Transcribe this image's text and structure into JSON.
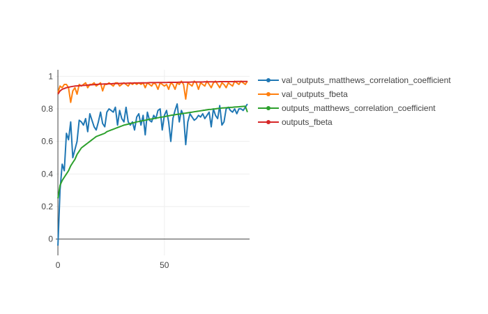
{
  "chart_data": {
    "type": "line",
    "xlim": [
      -1,
      90
    ],
    "ylim": [
      -0.1,
      1.04
    ],
    "grid": true,
    "legend_position": "right",
    "xticks": [
      {
        "value": 0,
        "label": "0"
      },
      {
        "value": 50,
        "label": "50"
      }
    ],
    "yticks": [
      {
        "value": 0,
        "label": "0"
      },
      {
        "value": 0.2,
        "label": "0.2"
      },
      {
        "value": 0.4,
        "label": "0.4"
      },
      {
        "value": 0.6,
        "label": "0.6"
      },
      {
        "value": 0.8,
        "label": "0.8"
      },
      {
        "value": 1,
        "label": "1"
      }
    ],
    "series": [
      {
        "name": "val_outputs_matthews_correlation_coefficient",
        "color": "#1f77b4",
        "values": [
          -0.04,
          0.3,
          0.46,
          0.42,
          0.65,
          0.61,
          0.72,
          0.5,
          0.55,
          0.6,
          0.73,
          0.72,
          0.7,
          0.74,
          0.66,
          0.77,
          0.73,
          0.69,
          0.67,
          0.72,
          0.78,
          0.71,
          0.69,
          0.78,
          0.8,
          0.79,
          0.78,
          0.81,
          0.7,
          0.79,
          0.74,
          0.72,
          0.81,
          0.72,
          0.7,
          0.72,
          0.67,
          0.75,
          0.77,
          0.7,
          0.76,
          0.64,
          0.78,
          0.73,
          0.72,
          0.76,
          0.74,
          0.79,
          0.8,
          0.67,
          0.76,
          0.79,
          0.72,
          0.6,
          0.74,
          0.79,
          0.83,
          0.72,
          0.79,
          0.76,
          0.58,
          0.72,
          0.77,
          0.75,
          0.73,
          0.74,
          0.76,
          0.75,
          0.77,
          0.74,
          0.76,
          0.78,
          0.69,
          0.8,
          0.76,
          0.74,
          0.82,
          0.7,
          0.72,
          0.8,
          0.81,
          0.79,
          0.78,
          0.8,
          0.77,
          0.8,
          0.8,
          0.79,
          0.81,
          0.83
        ]
      },
      {
        "name": "val_outputs_fbeta",
        "color": "#ff7f0e",
        "values": [
          0.9,
          0.94,
          0.93,
          0.95,
          0.95,
          0.93,
          0.84,
          0.91,
          0.93,
          0.89,
          0.95,
          0.94,
          0.95,
          0.96,
          0.93,
          0.95,
          0.95,
          0.96,
          0.94,
          0.95,
          0.96,
          0.91,
          0.95,
          0.95,
          0.96,
          0.95,
          0.94,
          0.96,
          0.96,
          0.94,
          0.95,
          0.96,
          0.95,
          0.94,
          0.96,
          0.95,
          0.96,
          0.95,
          0.96,
          0.95,
          0.96,
          0.93,
          0.96,
          0.95,
          0.94,
          0.96,
          0.95,
          0.92,
          0.96,
          0.95,
          0.94,
          0.95,
          0.92,
          0.96,
          0.95,
          0.92,
          0.96,
          0.95,
          0.97,
          0.95,
          0.86,
          0.96,
          0.95,
          0.94,
          0.97,
          0.96,
          0.92,
          0.96,
          0.95,
          0.94,
          0.97,
          0.95,
          0.93,
          0.96,
          0.97,
          0.95,
          0.93,
          0.96,
          0.95,
          0.93,
          0.96,
          0.95,
          0.94,
          0.97,
          0.96,
          0.95,
          0.97,
          0.96,
          0.95,
          0.97
        ]
      },
      {
        "name": "outputs_matthews_correlation_coefficient",
        "color": "#2ca02c",
        "values": [
          0.25,
          0.33,
          0.36,
          0.38,
          0.4,
          0.42,
          0.45,
          0.47,
          0.49,
          0.52,
          0.54,
          0.56,
          0.57,
          0.58,
          0.59,
          0.6,
          0.61,
          0.62,
          0.63,
          0.635,
          0.64,
          0.645,
          0.65,
          0.66,
          0.665,
          0.67,
          0.675,
          0.68,
          0.685,
          0.69,
          0.695,
          0.7,
          0.703,
          0.706,
          0.71,
          0.713,
          0.716,
          0.72,
          0.722,
          0.725,
          0.728,
          0.73,
          0.733,
          0.736,
          0.738,
          0.74,
          0.743,
          0.745,
          0.748,
          0.75,
          0.752,
          0.755,
          0.757,
          0.76,
          0.762,
          0.764,
          0.766,
          0.768,
          0.77,
          0.772,
          0.774,
          0.776,
          0.778,
          0.78,
          0.782,
          0.784,
          0.786,
          0.788,
          0.79,
          0.792,
          0.794,
          0.796,
          0.797,
          0.799,
          0.8,
          0.802,
          0.803,
          0.805,
          0.806,
          0.807,
          0.808,
          0.809,
          0.81,
          0.811,
          0.812,
          0.813,
          0.814,
          0.815,
          0.816,
          0.78
        ]
      },
      {
        "name": "outputs_fbeta",
        "color": "#d62728",
        "values": [
          0.89,
          0.91,
          0.92,
          0.925,
          0.93,
          0.933,
          0.936,
          0.938,
          0.94,
          0.941,
          0.942,
          0.943,
          0.944,
          0.945,
          0.946,
          0.947,
          0.948,
          0.949,
          0.95,
          0.951,
          0.952,
          0.952,
          0.953,
          0.953,
          0.954,
          0.954,
          0.955,
          0.955,
          0.956,
          0.956,
          0.957,
          0.957,
          0.957,
          0.958,
          0.958,
          0.958,
          0.959,
          0.959,
          0.959,
          0.96,
          0.96,
          0.96,
          0.96,
          0.961,
          0.961,
          0.961,
          0.961,
          0.962,
          0.962,
          0.962,
          0.962,
          0.962,
          0.963,
          0.963,
          0.963,
          0.963,
          0.963,
          0.964,
          0.964,
          0.964,
          0.964,
          0.964,
          0.964,
          0.965,
          0.965,
          0.965,
          0.965,
          0.965,
          0.965,
          0.966,
          0.966,
          0.966,
          0.966,
          0.966,
          0.966,
          0.966,
          0.967,
          0.967,
          0.967,
          0.967,
          0.967,
          0.967,
          0.967,
          0.967,
          0.968,
          0.968,
          0.968,
          0.968,
          0.968,
          0.968
        ]
      }
    ]
  }
}
